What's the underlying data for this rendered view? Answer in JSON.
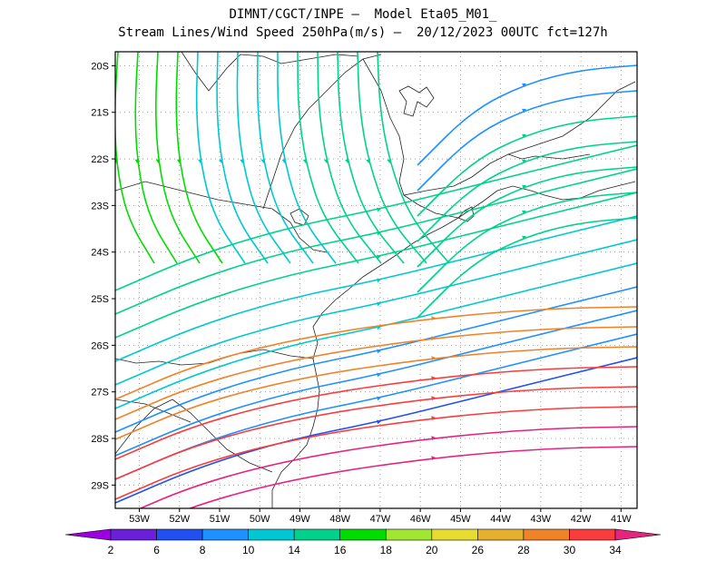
{
  "header": {
    "line1": "DIMNT/CGCT/INPE –  Model Eta05_M01_",
    "line2": "Stream Lines/Wind Speed 250hPa(m/s) –  20/12/2023 00UTC fct=127h"
  },
  "map": {
    "lat_ticks": [
      "20S",
      "21S",
      "22S",
      "23S",
      "24S",
      "25S",
      "26S",
      "27S",
      "28S",
      "29S"
    ],
    "lon_ticks": [
      "53W",
      "52W",
      "51W",
      "50W",
      "49W",
      "48W",
      "47W",
      "46W",
      "45W",
      "44W",
      "43W",
      "42W",
      "41W"
    ],
    "lat_range": [
      -29.5,
      -19.7
    ],
    "lon_range": [
      -53.6,
      -40.6
    ],
    "grid": true
  },
  "colorbar": {
    "labels": [
      "2",
      "6",
      "8",
      "10",
      "14",
      "16",
      "18",
      "20",
      "26",
      "28",
      "30",
      "34"
    ],
    "colors": [
      "#9b00e0",
      "#6a1fd8",
      "#2050f0",
      "#1e90ff",
      "#00c8d2",
      "#00d28c",
      "#00dc00",
      "#a0e632",
      "#e6dc32",
      "#e6af2d",
      "#f08228",
      "#fa3c3c",
      "#e6237d"
    ]
  }
}
